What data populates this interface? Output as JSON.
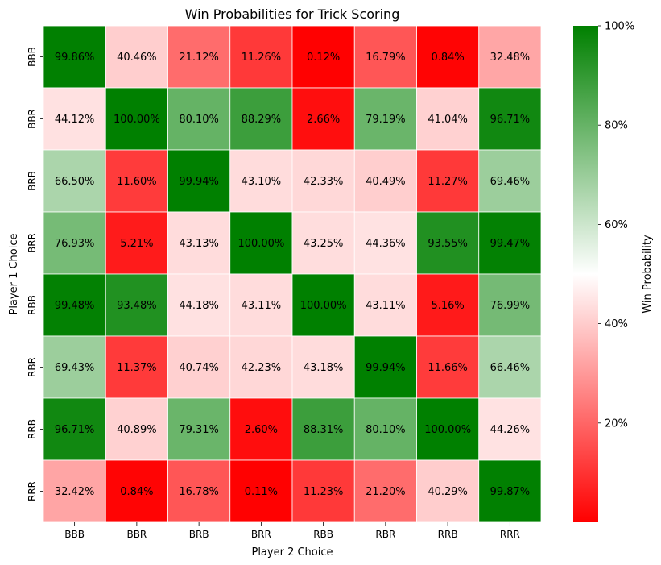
{
  "chart_data": {
    "type": "heatmap",
    "title": "Win Probabilities for Trick Scoring",
    "xlabel": "Player 2 Choice",
    "ylabel": "Player 1 Choice",
    "x_categories": [
      "BBB",
      "BBR",
      "BRB",
      "BRR",
      "RBB",
      "RBR",
      "RRB",
      "RRR"
    ],
    "y_categories": [
      "BBB",
      "BBR",
      "BRB",
      "BRR",
      "RBB",
      "RBR",
      "RRB",
      "RRR"
    ],
    "values": [
      [
        99.86,
        40.46,
        21.12,
        11.26,
        0.12,
        16.79,
        0.84,
        32.48
      ],
      [
        44.12,
        100.0,
        80.1,
        88.29,
        2.66,
        79.19,
        41.04,
        96.71
      ],
      [
        66.5,
        11.6,
        99.94,
        43.1,
        42.33,
        40.49,
        11.27,
        69.46
      ],
      [
        76.93,
        5.21,
        43.13,
        100.0,
        43.25,
        44.36,
        93.55,
        99.47
      ],
      [
        99.48,
        93.48,
        44.18,
        43.11,
        100.0,
        43.11,
        5.16,
        76.99
      ],
      [
        69.43,
        11.37,
        40.74,
        42.23,
        43.18,
        99.94,
        11.66,
        66.46
      ],
      [
        96.71,
        40.89,
        79.31,
        2.6,
        88.31,
        80.1,
        100.0,
        44.26
      ],
      [
        32.42,
        0.84,
        16.78,
        0.11,
        11.23,
        21.2,
        40.29,
        99.87
      ]
    ],
    "value_format": "percent_2dp",
    "colorbar": {
      "label": "Win Probability",
      "range": [
        0,
        100
      ],
      "ticks": [
        20,
        40,
        60,
        80,
        100
      ],
      "tick_labels": [
        "20%",
        "40%",
        "60%",
        "80%",
        "100%"
      ],
      "colors": [
        "#ff0000",
        "#ffffff",
        "#008000"
      ]
    }
  }
}
